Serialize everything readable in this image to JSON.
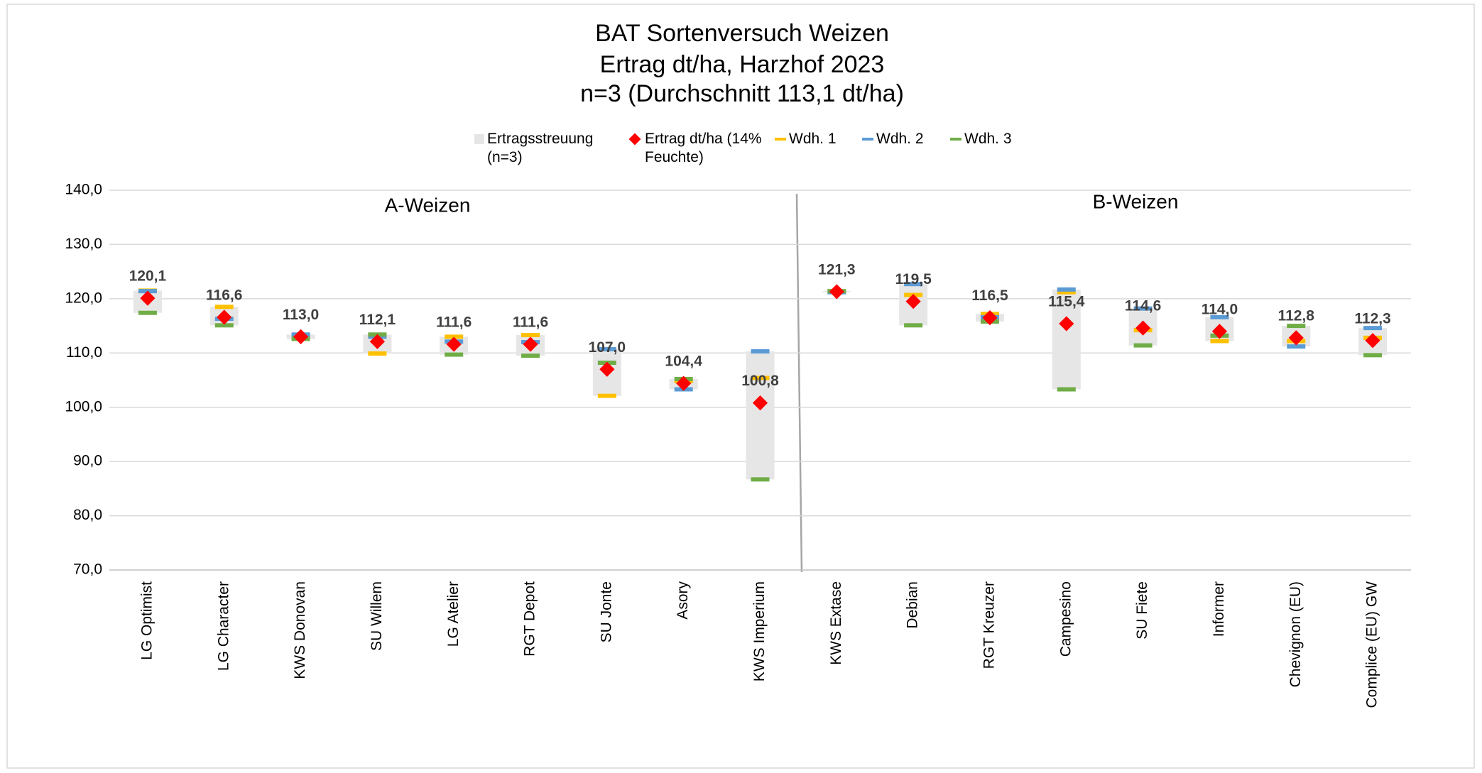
{
  "chart_data": {
    "type": "range-dot",
    "title": [
      "BAT Sortenversuch Weizen",
      "Ertrag dt/ha, Harzhof 2023",
      "n=3 (Durchschnitt 113,1 dt/ha)"
    ],
    "categories": [
      "LG Optimist",
      "LG Character",
      "KWS Donovan",
      "SU Willem",
      "LG Atelier",
      "RGT Depot",
      "SU Jonte",
      "Asory",
      "KWS Imperium",
      "KWS Extase",
      "Debian",
      "RGT Kreuzer",
      "Campesino",
      "SU Fiete",
      "Informer",
      "Chevignon (EU)",
      "Complice (EU) GW"
    ],
    "range": {
      "name": "Ertragsstreuung (n=3)",
      "color": "#e7e6e6"
    },
    "mean": {
      "name": "Ertrag dt/ha (14% Feuchte)",
      "color": "#ff0000",
      "values": [
        120.1,
        116.6,
        113.0,
        112.1,
        111.6,
        111.6,
        107.0,
        104.4,
        100.8,
        121.3,
        119.5,
        116.5,
        115.4,
        114.6,
        114.0,
        112.8,
        112.3
      ],
      "value_labels": [
        "120,1",
        "116,6",
        "113,0",
        "112,1",
        "111,6",
        "111,6",
        "107,0",
        "104,4",
        "100,8",
        "121,3",
        "119,5",
        "116,5",
        "115,4",
        "114,6",
        "114,0",
        "112,8",
        "112,3"
      ]
    },
    "series": [
      {
        "name": "Wdh. 1",
        "color": "#ffc000",
        "values": [
          121.5,
          118.5,
          113.0,
          109.9,
          113.0,
          113.3,
          102.1,
          104.8,
          105.4,
          121.3,
          120.7,
          117.2,
          121.2,
          114.2,
          112.2,
          112.2,
          112.8
        ]
      },
      {
        "name": "Wdh. 2",
        "color": "#5b9bd5",
        "values": [
          121.4,
          116.3,
          113.4,
          113.0,
          112.1,
          112.0,
          110.7,
          103.3,
          110.3,
          121.2,
          122.7,
          116.6,
          121.7,
          118.2,
          116.6,
          111.2,
          114.6
        ]
      },
      {
        "name": "Wdh. 3",
        "color": "#70ad47",
        "values": [
          117.4,
          115.1,
          112.6,
          113.4,
          109.7,
          109.5,
          108.2,
          105.2,
          86.7,
          121.4,
          115.1,
          115.8,
          103.3,
          111.4,
          113.2,
          115.0,
          109.6
        ]
      }
    ],
    "annotations": [
      "A-Weizen",
      "B-Weizen"
    ],
    "ylim": [
      70,
      140
    ],
    "yticks": [
      {
        "value": 70,
        "label": "70,0"
      },
      {
        "value": 80,
        "label": "80,0"
      },
      {
        "value": 90,
        "label": "90,0"
      },
      {
        "value": 100,
        "label": "100,0"
      },
      {
        "value": 110,
        "label": "110,0"
      },
      {
        "value": 120,
        "label": "120,0"
      },
      {
        "value": 130,
        "label": "130,0"
      },
      {
        "value": 140,
        "label": "140,0"
      }
    ],
    "grid": true
  }
}
